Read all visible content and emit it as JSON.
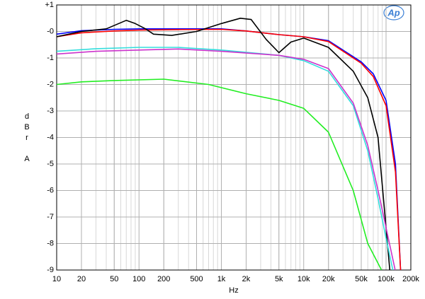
{
  "chart_data": {
    "type": "line",
    "logo": "Ap",
    "xlabel": "Hz",
    "ylabel": "dBr A",
    "xscale": "log",
    "grid": true,
    "xlim": [
      10,
      200000
    ],
    "ylim": [
      -9,
      1
    ],
    "xticks": [
      10,
      20,
      50,
      100,
      200,
      500,
      {
        "value": 1000,
        "label": "1k"
      },
      {
        "value": 2000,
        "label": "2k"
      },
      {
        "value": 5000,
        "label": "5k"
      },
      {
        "value": 10000,
        "label": "10k"
      },
      {
        "value": 20000,
        "label": "20k"
      },
      {
        "value": 50000,
        "label": "50k"
      },
      {
        "value": 100000,
        "label": "100k"
      },
      {
        "value": 200000,
        "label": "200k"
      }
    ],
    "yticks": [
      {
        "value": 1,
        "label": "+1"
      },
      {
        "value": 0,
        "label": "-0"
      },
      -1,
      -2,
      -3,
      -4,
      -5,
      -6,
      -7,
      -8,
      -9
    ],
    "series": [
      {
        "color": "#0000ff",
        "x": [
          10,
          20,
          50,
          100,
          300,
          1000,
          2000,
          5000,
          10000,
          20000,
          50000,
          70000,
          100000,
          130000,
          150000
        ],
        "values": [
          -0.1,
          0.03,
          0.08,
          0.1,
          0.1,
          0.1,
          0.02,
          -0.12,
          -0.2,
          -0.35,
          -1.15,
          -1.6,
          -2.6,
          -5,
          -9
        ]
      },
      {
        "color": "#ff0000",
        "x": [
          10,
          20,
          50,
          100,
          300,
          1000,
          2000,
          5000,
          10000,
          20000,
          50000,
          70000,
          100000,
          130000,
          150000
        ],
        "values": [
          -0.2,
          -0.05,
          0.02,
          0.05,
          0.07,
          0.08,
          0.02,
          -0.12,
          -0.2,
          -0.38,
          -1.2,
          -1.7,
          -2.8,
          -5.3,
          -9
        ]
      },
      {
        "color": "#000000",
        "x": [
          10,
          20,
          40,
          70,
          90,
          120,
          150,
          250,
          500,
          1000,
          1700,
          2300,
          3500,
          5000,
          7000,
          10000,
          20000,
          40000,
          60000,
          80000,
          111000
        ],
        "values": [
          -0.2,
          0,
          0.1,
          0.42,
          0.3,
          0.1,
          -0.1,
          -0.15,
          0,
          0.3,
          0.5,
          0.45,
          -0.3,
          -0.8,
          -0.4,
          -0.25,
          -0.6,
          -1.5,
          -2.5,
          -4,
          -9
        ]
      },
      {
        "color": "#33dddd",
        "x": [
          10,
          30,
          100,
          300,
          1000,
          5000,
          10000,
          20000,
          40000,
          60000,
          80000,
          100000,
          121000
        ],
        "values": [
          -0.75,
          -0.65,
          -0.6,
          -0.6,
          -0.7,
          -0.9,
          -1.1,
          -1.5,
          -2.8,
          -4.5,
          -6.3,
          -7.8,
          -9
        ]
      },
      {
        "color": "#cc33cc",
        "x": [
          10,
          30,
          100,
          300,
          1000,
          5000,
          10000,
          20000,
          40000,
          60000,
          80000,
          100000,
          129000
        ],
        "values": [
          -0.85,
          -0.75,
          -0.7,
          -0.66,
          -0.75,
          -0.9,
          -1.05,
          -1.4,
          -2.7,
          -4.3,
          -6,
          -7.4,
          -9
        ]
      },
      {
        "color": "#22ee22",
        "x": [
          10,
          20,
          50,
          200,
          700,
          2000,
          5000,
          10000,
          20000,
          40000,
          60000,
          88000
        ],
        "values": [
          -2,
          -1.9,
          -1.85,
          -1.8,
          -2,
          -2.35,
          -2.6,
          -2.9,
          -3.8,
          -6,
          -8,
          -9
        ]
      }
    ]
  }
}
